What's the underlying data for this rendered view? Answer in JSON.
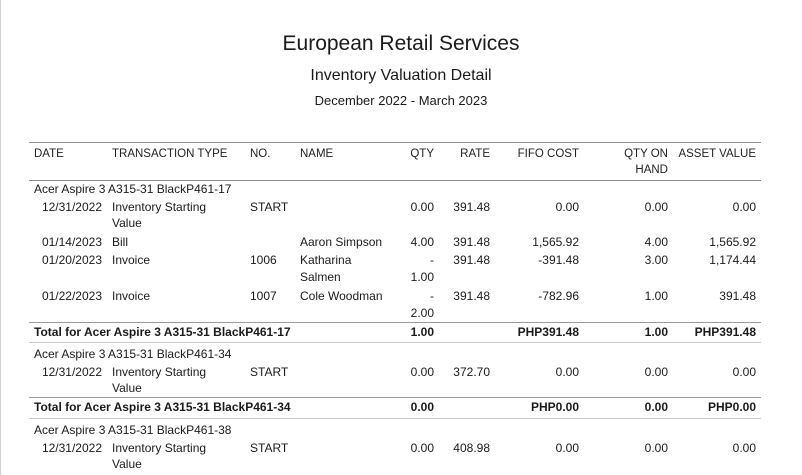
{
  "company": "European Retail Services",
  "report_title": "Inventory Valuation Detail",
  "period": "December 2022 - March 2023",
  "columns": {
    "date": "DATE",
    "type": "TRANSACTION TYPE",
    "no": "NO.",
    "name": "NAME",
    "qty": "QTY",
    "rate": "RATE",
    "fifo": "FIFO COST",
    "qoh_1": "QTY ON",
    "qoh_2": "HAND",
    "asset": "ASSET VALUE"
  },
  "groups": [
    {
      "item": "Acer Aspire 3 A315-31 BlackP461-17",
      "rows": [
        {
          "date": "12/31/2022",
          "type_1": "Inventory Starting",
          "type_2": "Value",
          "no": "START",
          "name_1": "",
          "name_2": "",
          "qty_1": "0.00",
          "qty_2": "",
          "rate": "391.48",
          "fifo": "0.00",
          "qoh": "0.00",
          "asset": "0.00"
        },
        {
          "date": "01/14/2023",
          "type_1": "Bill",
          "type_2": "",
          "no": "",
          "name_1": "Aaron Simpson",
          "name_2": "",
          "qty_1": "4.00",
          "qty_2": "",
          "rate": "391.48",
          "fifo": "1,565.92",
          "qoh": "4.00",
          "asset": "1,565.92"
        },
        {
          "date": "01/20/2023",
          "type_1": "Invoice",
          "type_2": "",
          "no": "1006",
          "name_1": "Katharina",
          "name_2": "Salmen",
          "qty_1": "-",
          "qty_2": "1.00",
          "rate": "391.48",
          "fifo": "-391.48",
          "qoh": "3.00",
          "asset": "1,174.44"
        },
        {
          "date": "01/22/2023",
          "type_1": "Invoice",
          "type_2": "",
          "no": "1007",
          "name_1": "Cole Woodman",
          "name_2": "",
          "qty_1": "-",
          "qty_2": "2.00",
          "rate": "391.48",
          "fifo": "-782.96",
          "qoh": "1.00",
          "asset": "391.48"
        }
      ],
      "total": {
        "label": "Total for Acer Aspire 3 A315-31 BlackP461-17",
        "qty": "1.00",
        "fifo": "PHP391.48",
        "qoh": "1.00",
        "asset": "PHP391.48"
      }
    },
    {
      "item": "Acer Aspire 3 A315-31 BlackP461-34",
      "rows": [
        {
          "date": "12/31/2022",
          "type_1": "Inventory Starting",
          "type_2": "Value",
          "no": "START",
          "name_1": "",
          "name_2": "",
          "qty_1": "0.00",
          "qty_2": "",
          "rate": "372.70",
          "fifo": "0.00",
          "qoh": "0.00",
          "asset": "0.00"
        }
      ],
      "total": {
        "label": "Total for Acer Aspire 3 A315-31 BlackP461-34",
        "qty": "0.00",
        "fifo": "PHP0.00",
        "qoh": "0.00",
        "asset": "PHP0.00"
      }
    },
    {
      "item": "Acer Aspire 3 A315-31 BlackP461-38",
      "rows": [
        {
          "date": "12/31/2022",
          "type_1": "Inventory Starting",
          "type_2": "Value",
          "no": "START",
          "name_1": "",
          "name_2": "",
          "qty_1": "0.00",
          "qty_2": "",
          "rate": "408.98",
          "fifo": "0.00",
          "qoh": "0.00",
          "asset": "0.00"
        }
      ]
    }
  ]
}
